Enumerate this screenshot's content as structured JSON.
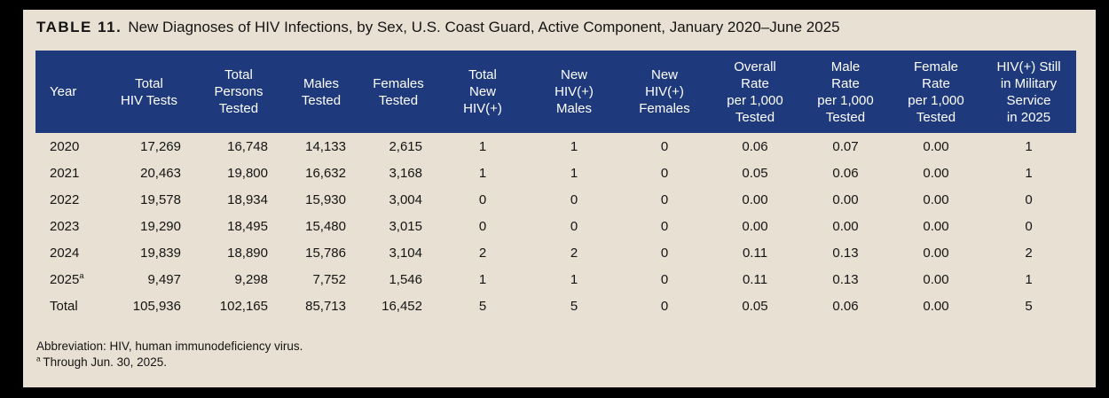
{
  "title": {
    "label": "TABLE 11.",
    "text": "New Diagnoses of HIV Infections, by Sex, U.S. Coast Guard, Active Component, January 2020–June 2025"
  },
  "colors": {
    "frame": "#000000",
    "page_background": "#e8e1d3",
    "header_background": "#1f3a7c",
    "header_text": "#ffffff",
    "body_text": "#141414"
  },
  "table": {
    "columns": [
      {
        "id": "year",
        "label": "Year",
        "lines": [
          "Year"
        ]
      },
      {
        "id": "total-hiv-tests",
        "label": "Total HIV Tests",
        "lines": [
          "Total",
          "HIV Tests"
        ]
      },
      {
        "id": "total-persons-tested",
        "label": "Total Persons Tested",
        "lines": [
          "Total",
          "Persons",
          "Tested"
        ]
      },
      {
        "id": "males-tested",
        "label": "Males Tested",
        "lines": [
          "Males",
          "Tested"
        ]
      },
      {
        "id": "females-tested",
        "label": "Females Tested",
        "lines": [
          "Females",
          "Tested"
        ]
      },
      {
        "id": "total-new-hiv-positive",
        "label": "Total New HIV(+)",
        "lines": [
          "Total",
          "New",
          "HIV(+)"
        ]
      },
      {
        "id": "new-hiv-positive-males",
        "label": "New HIV(+) Males",
        "lines": [
          "New",
          "HIV(+)",
          "Males"
        ]
      },
      {
        "id": "new-hiv-positive-females",
        "label": "New HIV(+) Females",
        "lines": [
          "New",
          "HIV(+)",
          "Females"
        ]
      },
      {
        "id": "overall-rate",
        "label": "Overall Rate per 1,000 Tested",
        "lines": [
          "Overall",
          "Rate",
          "per 1,000",
          "Tested"
        ]
      },
      {
        "id": "male-rate",
        "label": "Male Rate per 1,000 Tested",
        "lines": [
          "Male",
          "Rate",
          "per 1,000",
          "Tested"
        ]
      },
      {
        "id": "female-rate",
        "label": "Female Rate per 1,000 Tested",
        "lines": [
          "Female",
          "Rate",
          "per 1,000",
          "Tested"
        ]
      },
      {
        "id": "still-in-service-2025",
        "label": "HIV(+) Still in Military Service in 2025",
        "lines": [
          "HIV(+) Still",
          "in Military",
          "Service",
          "in 2025"
        ]
      }
    ],
    "rows": [
      {
        "year": "2020",
        "year_sup": "",
        "values": [
          "17,269",
          "16,748",
          "14,133",
          "2,615",
          "1",
          "1",
          "0",
          "0.06",
          "0.07",
          "0.00",
          "1"
        ]
      },
      {
        "year": "2021",
        "year_sup": "",
        "values": [
          "20,463",
          "19,800",
          "16,632",
          "3,168",
          "1",
          "1",
          "0",
          "0.05",
          "0.06",
          "0.00",
          "1"
        ]
      },
      {
        "year": "2022",
        "year_sup": "",
        "values": [
          "19,578",
          "18,934",
          "15,930",
          "3,004",
          "0",
          "0",
          "0",
          "0.00",
          "0.00",
          "0.00",
          "0"
        ]
      },
      {
        "year": "2023",
        "year_sup": "",
        "values": [
          "19,290",
          "18,495",
          "15,480",
          "3,015",
          "0",
          "0",
          "0",
          "0.00",
          "0.00",
          "0.00",
          "0"
        ]
      },
      {
        "year": "2024",
        "year_sup": "",
        "values": [
          "19,839",
          "18,890",
          "15,786",
          "3,104",
          "2",
          "2",
          "0",
          "0.11",
          "0.13",
          "0.00",
          "2"
        ]
      },
      {
        "year": "2025",
        "year_sup": "a",
        "values": [
          "9,497",
          "9,298",
          "7,752",
          "1,546",
          "1",
          "1",
          "0",
          "0.11",
          "0.13",
          "0.00",
          "1"
        ]
      },
      {
        "year": "Total",
        "year_sup": "",
        "values": [
          "105,936",
          "102,165",
          "85,713",
          "16,452",
          "5",
          "5",
          "0",
          "0.05",
          "0.06",
          "0.00",
          "5"
        ]
      }
    ]
  },
  "footnotes": [
    {
      "sup": "",
      "text": "Abbreviation: HIV, human immunodeficiency virus."
    },
    {
      "sup": "a",
      "text": "Through Jun. 30, 2025."
    }
  ]
}
